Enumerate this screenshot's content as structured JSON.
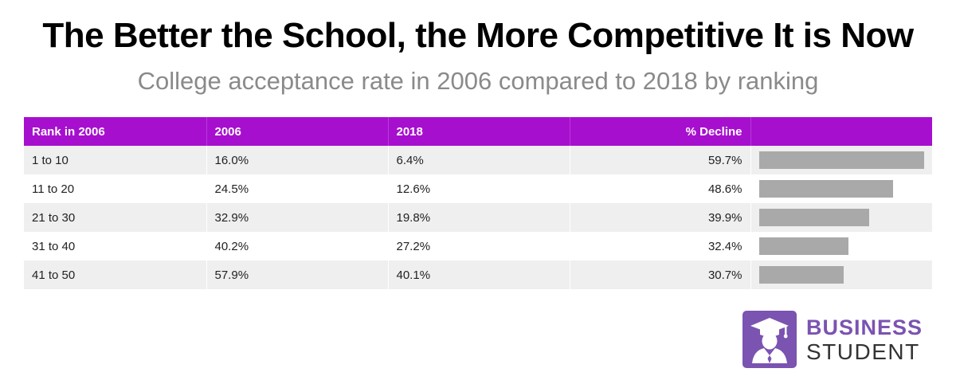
{
  "title": "The Better the School, the More Competitive It is Now",
  "subtitle": "College acceptance rate in 2006 compared to 2018 by ranking",
  "colors": {
    "header_bg": "#a70fcf",
    "bar": "#a9a9a9",
    "stripe": "#efefef",
    "brand": "#7b53b1"
  },
  "table": {
    "headers": [
      "Rank in 2006",
      "2006",
      "2018",
      "% Decline"
    ],
    "rows": [
      [
        "1 to 10",
        "16.0%",
        "6.4%",
        "59.7%"
      ],
      [
        "11 to 20",
        "24.5%",
        "12.6%",
        "48.6%"
      ],
      [
        "21 to 30",
        "32.9%",
        "19.8%",
        "39.9%"
      ],
      [
        "31 to 40",
        "40.2%",
        "27.2%",
        "32.4%"
      ],
      [
        "41 to 50",
        "57.9%",
        "40.1%",
        "30.7%"
      ]
    ]
  },
  "chart_data": {
    "type": "table",
    "title": "The Better the School, the More Competitive It is Now",
    "subtitle": "College acceptance rate in 2006 compared to 2018 by ranking",
    "columns": [
      "Rank in 2006",
      "2006",
      "2018",
      "% Decline"
    ],
    "categories": [
      "1 to 10",
      "11 to 20",
      "21 to 30",
      "31 to 40",
      "41 to 50"
    ],
    "series": [
      {
        "name": "2006",
        "values": [
          16.0,
          24.5,
          32.9,
          40.2,
          57.9
        ]
      },
      {
        "name": "2018",
        "values": [
          6.4,
          12.6,
          19.8,
          27.2,
          40.1
        ]
      },
      {
        "name": "% Decline",
        "values": [
          59.7,
          48.6,
          39.9,
          32.4,
          30.7
        ]
      }
    ],
    "bar_series": "% Decline",
    "bar_max": 59.7
  },
  "logo": {
    "line1": "BUSINESS",
    "line2": "STUDENT",
    "icon": "graduate-icon"
  }
}
